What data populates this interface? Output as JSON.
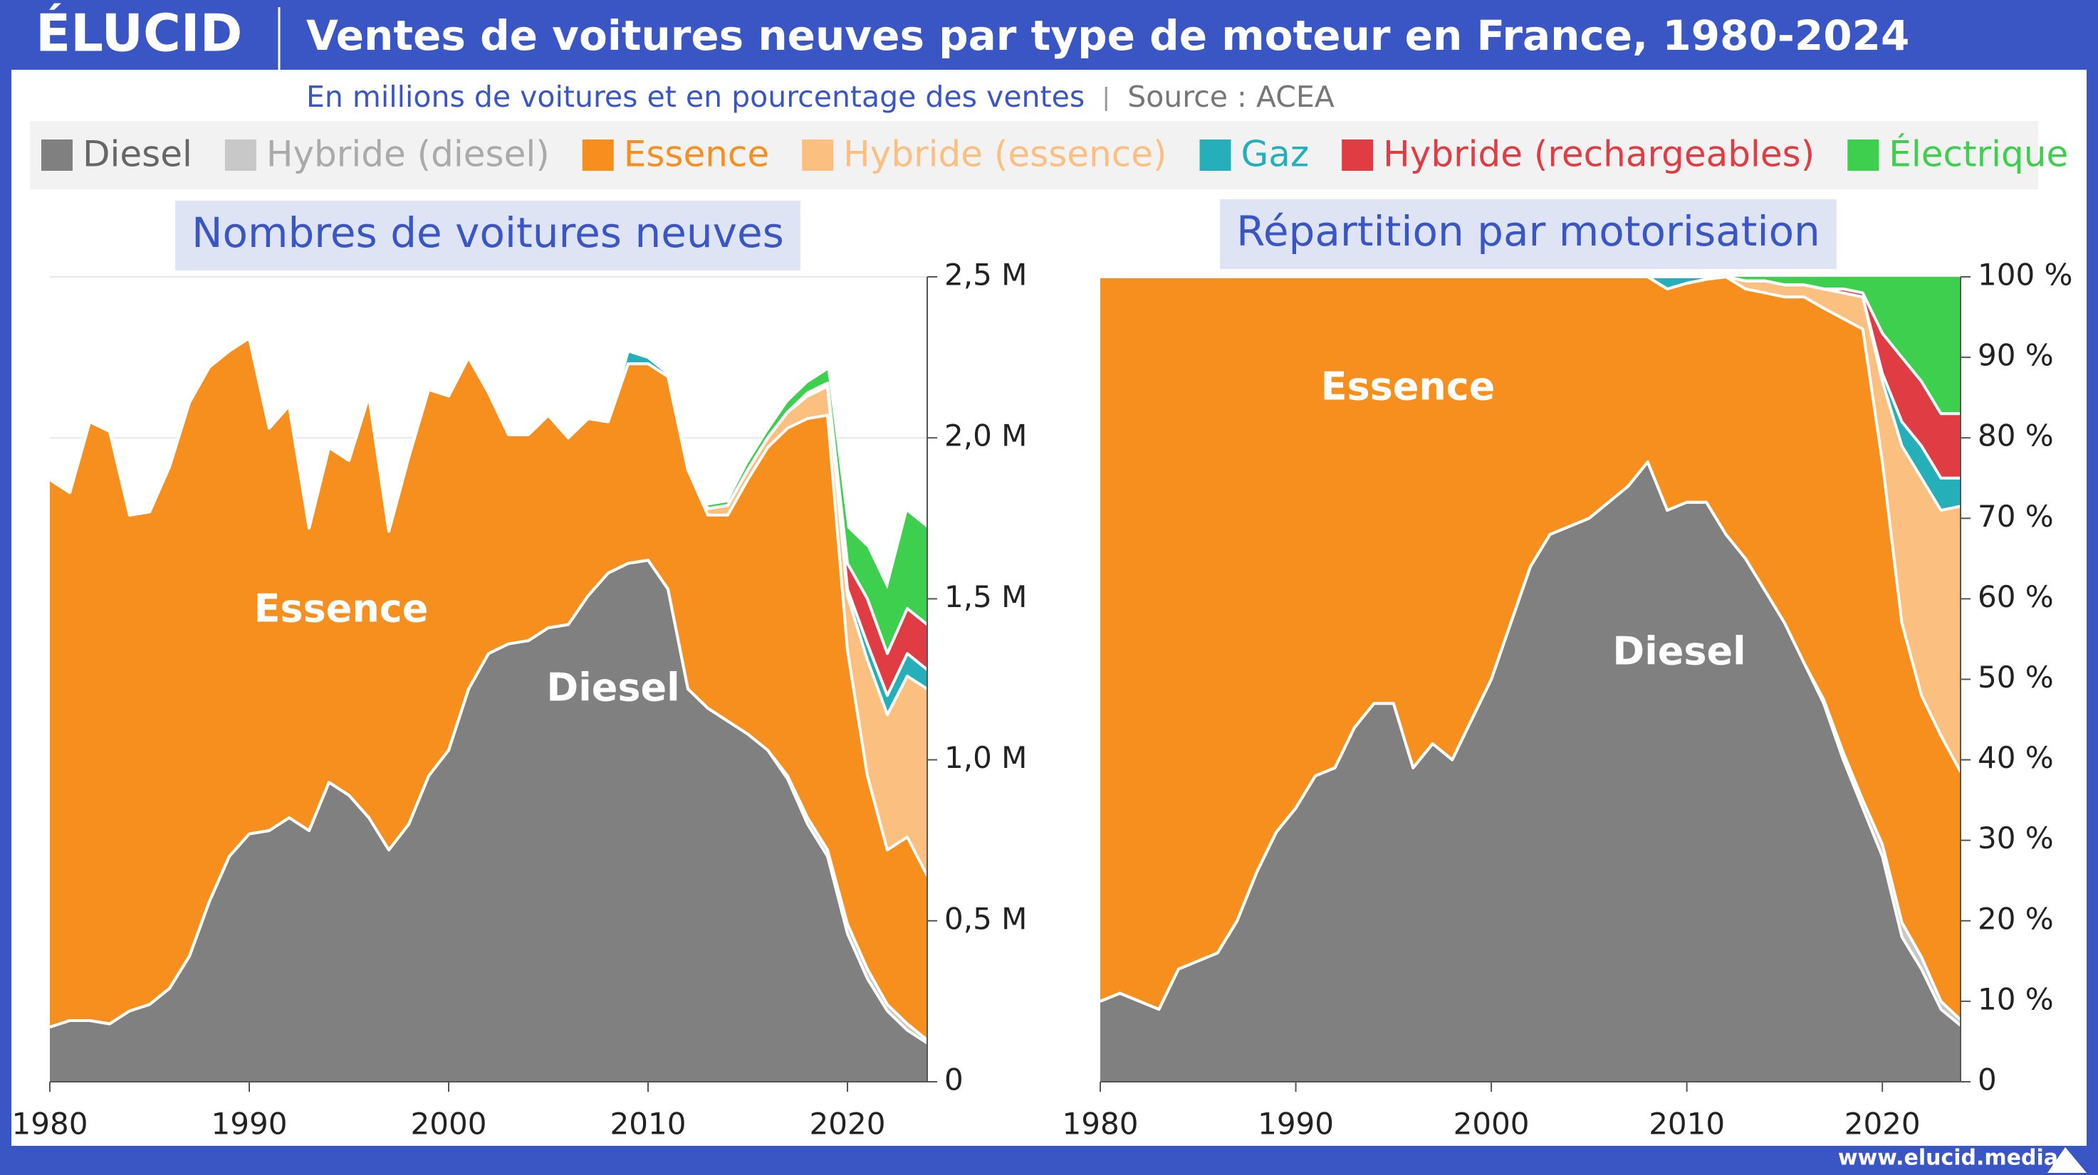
{
  "header": {
    "brand": "ÉLUCID",
    "title": "Ventes de voitures neuves par type de moteur en France, 1980-2024",
    "subtitle": "En millions de voitures et en pourcentage des ventes",
    "source": "Source : ACEA",
    "footer": "www.elucid.media"
  },
  "chart_data": [
    {
      "type": "area",
      "title": "Nombres de voitures neuves",
      "stacked": true,
      "grid": true,
      "annotations": [
        "Essence",
        "Diesel"
      ],
      "x": [
        1980,
        1981,
        1982,
        1983,
        1984,
        1985,
        1986,
        1987,
        1988,
        1989,
        1990,
        1991,
        1992,
        1993,
        1994,
        1995,
        1996,
        1997,
        1998,
        1999,
        2000,
        2001,
        2002,
        2003,
        2004,
        2005,
        2006,
        2007,
        2008,
        2009,
        2010,
        2011,
        2012,
        2013,
        2014,
        2015,
        2016,
        2017,
        2018,
        2019,
        2020,
        2021,
        2022,
        2023,
        2024
      ],
      "xlim": [
        1980,
        2024
      ],
      "xticks": [
        1980,
        1990,
        2000,
        2010,
        2020
      ],
      "ylim": [
        0,
        2.5
      ],
      "yticks": [
        0,
        {
          "value": 0.5,
          "label": "0,5 M"
        },
        {
          "value": 1,
          "label": "1,0 M"
        },
        {
          "value": 1.5,
          "label": "1,5 M"
        },
        {
          "value": 2,
          "label": "2,0 M"
        },
        {
          "value": 2.5,
          "label": "2,5 M"
        }
      ],
      "series": [
        {
          "name": "Diesel",
          "color": "#808080",
          "values": [
            0.17,
            0.19,
            0.19,
            0.18,
            0.22,
            0.24,
            0.29,
            0.39,
            0.56,
            0.7,
            0.77,
            0.78,
            0.82,
            0.78,
            0.93,
            0.89,
            0.82,
            0.72,
            0.8,
            0.95,
            1.03,
            1.22,
            1.33,
            1.36,
            1.37,
            1.41,
            1.42,
            1.51,
            1.58,
            1.61,
            1.62,
            1.53,
            1.22,
            1.16,
            1.12,
            1.08,
            1.03,
            0.94,
            0.8,
            0.7,
            0.46,
            0.32,
            0.22,
            0.16,
            0.12
          ]
        },
        {
          "name": "Hybride (diesel)",
          "color": "#c8c8c8",
          "values": [
            0,
            0,
            0,
            0,
            0,
            0,
            0,
            0,
            0,
            0,
            0,
            0,
            0,
            0,
            0,
            0,
            0,
            0,
            0,
            0,
            0,
            0,
            0,
            0,
            0,
            0,
            0,
            0,
            0,
            0,
            0,
            0,
            0,
            0,
            0,
            0,
            0,
            0.01,
            0.02,
            0.02,
            0.03,
            0.03,
            0.02,
            0.02,
            0.01
          ]
        },
        {
          "name": "Essence",
          "color": "#f78f1e",
          "values": [
            1.7,
            1.64,
            1.86,
            1.84,
            1.54,
            1.53,
            1.62,
            1.72,
            1.66,
            1.57,
            1.54,
            1.25,
            1.28,
            0.94,
            1.04,
            1.04,
            1.31,
            0.99,
            1.14,
            1.2,
            1.1,
            1.03,
            0.81,
            0.65,
            0.64,
            0.66,
            0.58,
            0.55,
            0.47,
            0.62,
            0.61,
            0.66,
            0.68,
            0.6,
            0.64,
            0.79,
            0.94,
            1.08,
            1.24,
            1.35,
            0.85,
            0.6,
            0.48,
            0.58,
            0.51
          ]
        },
        {
          "name": "Hybride (essence)",
          "color": "#fbbf80",
          "values": [
            0,
            0,
            0,
            0,
            0,
            0,
            0,
            0,
            0,
            0,
            0,
            0,
            0,
            0,
            0,
            0,
            0,
            0,
            0,
            0,
            0,
            0,
            0,
            0,
            0,
            0,
            0,
            0,
            0,
            0,
            0,
            0,
            0,
            0.02,
            0.03,
            0.03,
            0.03,
            0.05,
            0.07,
            0.09,
            0.17,
            0.36,
            0.42,
            0.5,
            0.58
          ]
        },
        {
          "name": "Gaz",
          "color": "#25b0b9",
          "values": [
            0,
            0,
            0,
            0,
            0,
            0,
            0,
            0,
            0,
            0,
            0,
            0,
            0,
            0,
            0,
            0,
            0,
            0,
            0,
            0,
            0,
            0,
            0,
            0,
            0,
            0,
            0,
            0,
            0,
            0.04,
            0.02,
            0.01,
            0,
            0,
            0,
            0,
            0,
            0,
            0,
            0,
            0.02,
            0.05,
            0.06,
            0.07,
            0.06
          ]
        },
        {
          "name": "Hybride (rechargeables)",
          "color": "#e03c44",
          "values": [
            0,
            0,
            0,
            0,
            0,
            0,
            0,
            0,
            0,
            0,
            0,
            0,
            0,
            0,
            0,
            0,
            0,
            0,
            0,
            0,
            0,
            0,
            0,
            0,
            0,
            0,
            0,
            0,
            0,
            0,
            0,
            0,
            0,
            0,
            0,
            0,
            0,
            0,
            0.01,
            0.01,
            0.08,
            0.14,
            0.13,
            0.14,
            0.14
          ]
        },
        {
          "name": "Électrique",
          "color": "#3ecf4f",
          "values": [
            0,
            0,
            0,
            0,
            0,
            0,
            0,
            0,
            0,
            0,
            0,
            0,
            0,
            0,
            0,
            0,
            0,
            0,
            0,
            0,
            0,
            0,
            0,
            0,
            0,
            0,
            0,
            0,
            0,
            0,
            0,
            0,
            0,
            0.01,
            0.01,
            0.02,
            0.02,
            0.03,
            0.03,
            0.04,
            0.11,
            0.16,
            0.2,
            0.3,
            0.3
          ]
        }
      ]
    },
    {
      "type": "area",
      "title": "Répartition par motorisation",
      "stacked": true,
      "grid": false,
      "annotations": [
        "Essence",
        "Diesel"
      ],
      "x": [
        1980,
        1981,
        1982,
        1983,
        1984,
        1985,
        1986,
        1987,
        1988,
        1989,
        1990,
        1991,
        1992,
        1993,
        1994,
        1995,
        1996,
        1997,
        1998,
        1999,
        2000,
        2001,
        2002,
        2003,
        2004,
        2005,
        2006,
        2007,
        2008,
        2009,
        2010,
        2011,
        2012,
        2013,
        2014,
        2015,
        2016,
        2017,
        2018,
        2019,
        2020,
        2021,
        2022,
        2023,
        2024
      ],
      "xlim": [
        1980,
        2024
      ],
      "xticks": [
        1980,
        1990,
        2000,
        2010,
        2020
      ],
      "ylim": [
        0,
        100
      ],
      "yticks": [
        0,
        {
          "value": 10,
          "label": "10 %"
        },
        {
          "value": 20,
          "label": "20 %"
        },
        {
          "value": 30,
          "label": "30 %"
        },
        {
          "value": 40,
          "label": "40 %"
        },
        {
          "value": 50,
          "label": "50 %"
        },
        {
          "value": 60,
          "label": "60 %"
        },
        {
          "value": 70,
          "label": "70 %"
        },
        {
          "value": 80,
          "label": "80 %"
        },
        {
          "value": 90,
          "label": "90 %"
        },
        {
          "value": 100,
          "label": "100 %"
        }
      ],
      "series": [
        {
          "color": "#808080",
          "values": [
            10,
            11,
            10,
            9,
            14,
            15,
            16,
            20,
            26,
            31,
            34,
            38,
            39,
            44,
            47,
            47,
            39,
            42,
            40,
            45,
            50,
            57,
            64,
            68,
            69,
            70,
            72,
            74,
            77,
            71,
            72,
            72,
            68,
            65,
            61,
            57,
            52,
            47,
            40,
            34,
            28,
            18,
            14,
            9,
            7
          ]
        },
        {
          "color": "#c8c8c8",
          "values": [
            0,
            0,
            0,
            0,
            0,
            0,
            0,
            0,
            0,
            0,
            0,
            0,
            0,
            0,
            0,
            0,
            0,
            0,
            0,
            0,
            0,
            0,
            0,
            0,
            0,
            0,
            0,
            0,
            0,
            0,
            0,
            0,
            0,
            0,
            0,
            0,
            0,
            0.5,
            0.9,
            1,
            1.5,
            1.8,
            1.5,
            1,
            0.7
          ]
        },
        {
          "color": "#f78f1e",
          "values": [
            90,
            89,
            90,
            91,
            86,
            85,
            84,
            80,
            74,
            69,
            66,
            62,
            61,
            56,
            53,
            53,
            61,
            58,
            60,
            55,
            50,
            43,
            36,
            32,
            31,
            30,
            28,
            26,
            23,
            27.5,
            27.2,
            27.7,
            32,
            33.5,
            37,
            40.5,
            45.5,
            48.6,
            53.9,
            58.5,
            47.5,
            37.2,
            32.5,
            33,
            30.8
          ]
        },
        {
          "color": "#fbbf80",
          "values": [
            0,
            0,
            0,
            0,
            0,
            0,
            0,
            0,
            0,
            0,
            0,
            0,
            0,
            0,
            0,
            0,
            0,
            0,
            0,
            0,
            0,
            0,
            0,
            0,
            0,
            0,
            0,
            0,
            0,
            0,
            0,
            0,
            0,
            1,
            1.5,
            1.5,
            1.5,
            2.4,
            3.2,
            4,
            10,
            22,
            27,
            28,
            33
          ]
        },
        {
          "color": "#25b0b9",
          "values": [
            0,
            0,
            0,
            0,
            0,
            0,
            0,
            0,
            0,
            0,
            0,
            0,
            0,
            0,
            0,
            0,
            0,
            0,
            0,
            0,
            0,
            0,
            0,
            0,
            0,
            0,
            0,
            0,
            0,
            1.5,
            0.8,
            0.3,
            0,
            0,
            0,
            0,
            0,
            0,
            0,
            0,
            1,
            3,
            4,
            4,
            3.5
          ]
        },
        {
          "color": "#e03c44",
          "values": [
            0,
            0,
            0,
            0,
            0,
            0,
            0,
            0,
            0,
            0,
            0,
            0,
            0,
            0,
            0,
            0,
            0,
            0,
            0,
            0,
            0,
            0,
            0,
            0,
            0,
            0,
            0,
            0,
            0,
            0,
            0,
            0,
            0,
            0,
            0,
            0,
            0,
            0,
            0.5,
            0.5,
            5,
            8,
            8,
            8,
            8
          ]
        },
        {
          "color": "#3ecf4f",
          "values": [
            0,
            0,
            0,
            0,
            0,
            0,
            0,
            0,
            0,
            0,
            0,
            0,
            0,
            0,
            0,
            0,
            0,
            0,
            0,
            0,
            0,
            0,
            0,
            0,
            0,
            0,
            0,
            0,
            0,
            0,
            0,
            0,
            0,
            0.5,
            0.5,
            1,
            1,
            1.5,
            1.5,
            2,
            7,
            10,
            13,
            17,
            17
          ]
        }
      ]
    }
  ]
}
